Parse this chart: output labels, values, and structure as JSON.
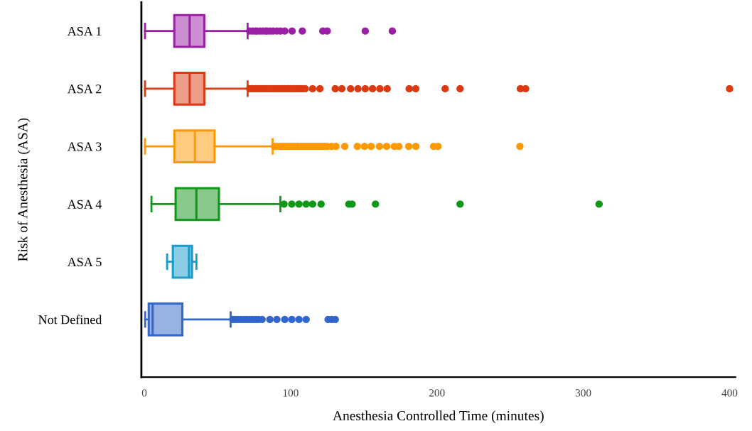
{
  "chart_data": {
    "type": "box",
    "orientation": "horizontal",
    "xlabel": "Anesthesia Controlled Time (minutes)",
    "ylabel": "Risk of Anesthesia (ASA)",
    "categories": [
      "ASA 1",
      "ASA 2",
      "ASA 3",
      "ASA 4",
      "ASA 5",
      "Not Defined"
    ],
    "colors": [
      "#9b1fa6",
      "#dc3912",
      "#ff9900",
      "#109618",
      "#1a9bcc",
      "#3366cc"
    ],
    "xlim": [
      -2,
      404
    ],
    "xticks": [
      0,
      100,
      200,
      300,
      400
    ],
    "grid": false,
    "legend": false,
    "boxes": [
      {
        "low": 0.5,
        "q1": 20.5,
        "median": 31,
        "q3": 41,
        "high": 70.6,
        "outliers": [
          72,
          74,
          76,
          77,
          79,
          81,
          83,
          84,
          86,
          88,
          90.6,
          93,
          96,
          101,
          108,
          122,
          125,
          151,
          169.5
        ]
      },
      {
        "low": 0.5,
        "q1": 20.5,
        "median": 31,
        "q3": 41,
        "high": 70.6,
        "outliers": [
          72,
          74,
          76,
          78,
          80,
          82,
          84,
          86,
          88,
          90,
          92,
          94,
          96,
          98,
          100,
          102,
          104,
          106,
          108,
          110,
          115,
          120,
          130.5,
          135,
          141,
          146,
          151,
          156,
          161,
          166,
          181,
          185.5,
          205.6,
          215.8,
          257,
          260.6,
          400
        ]
      },
      {
        "low": 0.5,
        "q1": 20.5,
        "median": 34.6,
        "q3": 48,
        "high": 87.7,
        "outliers": [
          89,
          91,
          93,
          95,
          97,
          99,
          101,
          103,
          105,
          107,
          109,
          111,
          113,
          115,
          117,
          119,
          121,
          123,
          125,
          128,
          131,
          137,
          145.6,
          150.5,
          155,
          160.7,
          165.6,
          171,
          174,
          180.7,
          185.6,
          197.7,
          200.7,
          256.7
        ]
      },
      {
        "low": 4.9,
        "q1": 21.4,
        "median": 35.6,
        "q3": 51,
        "high": 93,
        "outliers": [
          95.5,
          100.8,
          105.7,
          110.6,
          115,
          120.8,
          139.8,
          142,
          158,
          215.8,
          310.8
        ]
      },
      {
        "low": 15.6,
        "q1": 19.5,
        "median": 30.5,
        "q3": 32.6,
        "high": 35.6
      },
      {
        "low": 0.6,
        "q1": 3,
        "median": 5.7,
        "q3": 26,
        "high": 59,
        "outliers": [
          60.5,
          62,
          64,
          66,
          68,
          70,
          72,
          74,
          76,
          78,
          80.5,
          85.8,
          90.6,
          96,
          100.8,
          105.7,
          110.6,
          125.6,
          128,
          130.5
        ]
      }
    ]
  }
}
